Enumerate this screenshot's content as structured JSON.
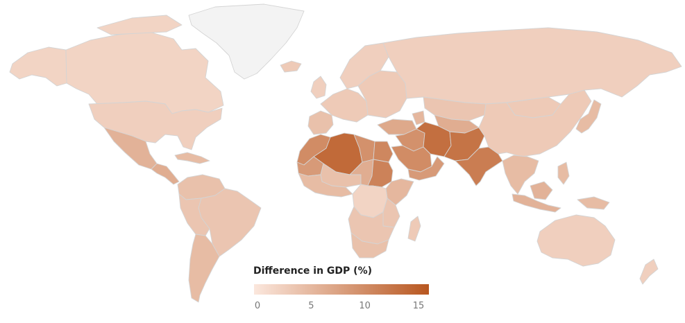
{
  "legend": {
    "title": "Difference in GDP (%)",
    "min": 0,
    "max": 15,
    "ticks": [
      "0",
      "5",
      "10",
      "15"
    ],
    "color_low": "#fbe7dd",
    "color_high": "#b85720"
  },
  "no_data_color": "#f3f3f3",
  "regions": [
    {
      "id": "canada",
      "value": 2
    },
    {
      "id": "alaska",
      "value": 2
    },
    {
      "id": "greenland",
      "value": null
    },
    {
      "id": "usa",
      "value": 2.5
    },
    {
      "id": "mexico",
      "value": 5.5
    },
    {
      "id": "central-america",
      "value": 6
    },
    {
      "id": "caribbean",
      "value": 4.5
    },
    {
      "id": "colombia-venezuela",
      "value": 4
    },
    {
      "id": "brazil",
      "value": 3.5
    },
    {
      "id": "peru-bolivia",
      "value": 3.5
    },
    {
      "id": "argentina-chile",
      "value": 4.5
    },
    {
      "id": "iceland",
      "value": 3
    },
    {
      "id": "uk",
      "value": 2.5
    },
    {
      "id": "scandinavia",
      "value": 2.5
    },
    {
      "id": "western-europe",
      "value": 3
    },
    {
      "id": "iberia",
      "value": 4
    },
    {
      "id": "eastern-europe",
      "value": 3
    },
    {
      "id": "russia",
      "value": 2.5
    },
    {
      "id": "turkey",
      "value": 6.5
    },
    {
      "id": "caucasus",
      "value": 5
    },
    {
      "id": "kazakhstan",
      "value": 3.5
    },
    {
      "id": "central-asia",
      "value": 6
    },
    {
      "id": "mongolia",
      "value": 3
    },
    {
      "id": "china",
      "value": 3
    },
    {
      "id": "korea-japan",
      "value": 4.5
    },
    {
      "id": "iran",
      "value": 12.5
    },
    {
      "id": "afghanistan-pakistan",
      "value": 12
    },
    {
      "id": "iraq-syria",
      "value": 9
    },
    {
      "id": "saudi-arabia",
      "value": 9.5
    },
    {
      "id": "yemen-oman",
      "value": 8
    },
    {
      "id": "india",
      "value": 11
    },
    {
      "id": "southeast-asia",
      "value": 4.5
    },
    {
      "id": "indonesia",
      "value": 5.5
    },
    {
      "id": "philippines",
      "value": 4.5
    },
    {
      "id": "new-guinea",
      "value": 4.5
    },
    {
      "id": "australia",
      "value": 2.5
    },
    {
      "id": "new-zealand",
      "value": 2.5
    },
    {
      "id": "morocco-western-sahara",
      "value": 9.5
    },
    {
      "id": "algeria",
      "value": 13
    },
    {
      "id": "libya",
      "value": 9
    },
    {
      "id": "egypt",
      "value": 10
    },
    {
      "id": "mauritania",
      "value": 8
    },
    {
      "id": "mali-niger",
      "value": 4
    },
    {
      "id": "chad",
      "value": 6
    },
    {
      "id": "sudan",
      "value": 10.5
    },
    {
      "id": "west-africa",
      "value": 4.5
    },
    {
      "id": "horn-of-africa",
      "value": 5
    },
    {
      "id": "central-africa",
      "value": 2
    },
    {
      "id": "east-africa",
      "value": 3.5
    },
    {
      "id": "southern-africa",
      "value": 3.5
    },
    {
      "id": "south-africa",
      "value": 4
    },
    {
      "id": "madagascar",
      "value": 3
    }
  ]
}
